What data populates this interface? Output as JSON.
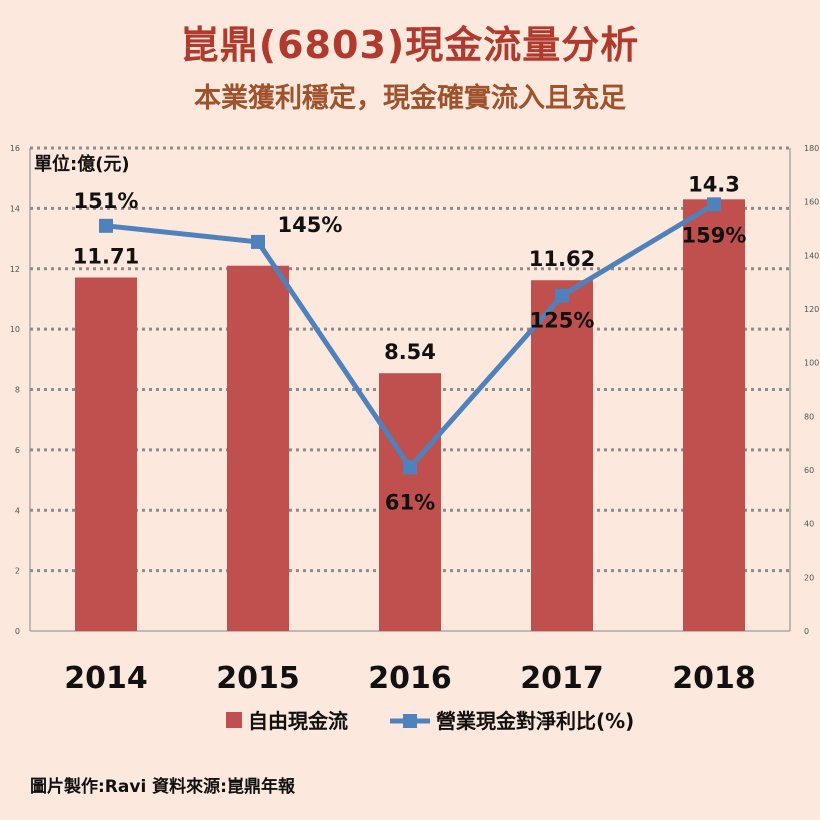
{
  "header": {
    "title": "崑鼎(6803)現金流量分析",
    "subtitle": "本業獲利穩定，現金確實流入且充足"
  },
  "footer": {
    "credit": "圖片製作:Ravi  資料來源:崑鼎年報"
  },
  "colors": {
    "background": "#fce8dc",
    "bar": "#c0504d",
    "line": "#4f81bd",
    "grid": "#8c8c8c",
    "title": "#b03a2e",
    "subtitle": "#a0522d"
  },
  "chart_data": {
    "type": "bar",
    "unit_label": "單位:億(元)",
    "categories": [
      "2014",
      "2015",
      "2016",
      "2017",
      "2018"
    ],
    "ylim_left": [
      0,
      16
    ],
    "yticks_left": [
      "0",
      "2",
      "4",
      "6",
      "8",
      "10",
      "12",
      "14",
      "16"
    ],
    "ylim_right": [
      0,
      180
    ],
    "yticks_right": [
      "0",
      "20",
      "40",
      "60",
      "80",
      "100",
      "120",
      "140",
      "160",
      "180"
    ],
    "grid": true,
    "legend_position": "bottom",
    "series": [
      {
        "name": "自由現金流",
        "kind": "bar",
        "axis": "left",
        "values": [
          11.71,
          12.1,
          8.54,
          11.62,
          14.3
        ],
        "labels": [
          "11.71",
          "",
          "8.54",
          "11.62",
          "14.3"
        ]
      },
      {
        "name": "營業現金對淨利比(%)",
        "kind": "line",
        "axis": "right",
        "values": [
          151,
          145,
          61,
          125,
          159
        ],
        "labels": [
          "151%",
          "145%",
          "61%",
          "125%",
          "159%"
        ]
      }
    ]
  }
}
